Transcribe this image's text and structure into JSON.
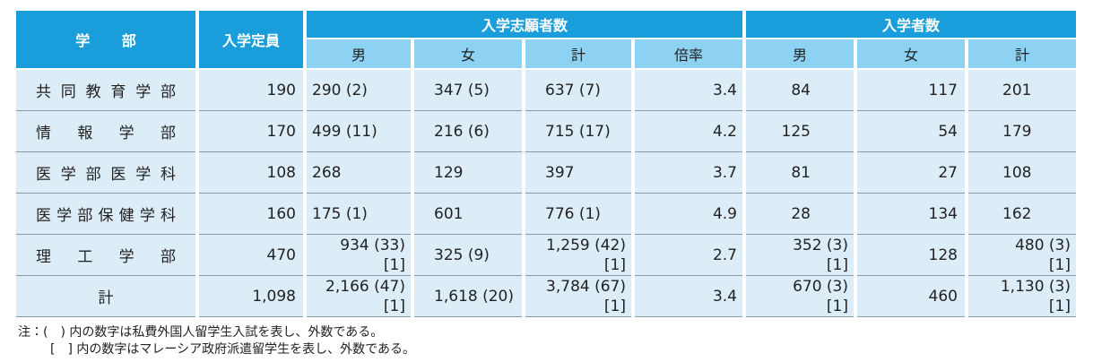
{
  "header": {
    "dept": "学 部",
    "capacity": "入学定員",
    "applicants": "入学志願者数",
    "entrants": "入学者数",
    "applicant_cols": [
      "男",
      "女",
      "計",
      "倍率"
    ],
    "entrant_cols": [
      "男",
      "女",
      "計"
    ]
  },
  "rows": [
    [
      "共同教育学部",
      "190",
      "290 (2)",
      "347 (5)",
      "637 (7)",
      "3.4",
      "84",
      "117",
      "201"
    ],
    [
      "情報学部",
      "170",
      "499 (11)",
      "216 (6)",
      "715 (17)",
      "4.2",
      "125",
      "54",
      "179"
    ],
    [
      "医学部医学科",
      "108",
      "268",
      "129",
      "397",
      "3.7",
      "81",
      "27",
      "108"
    ],
    [
      "医学部保健学科",
      "160",
      "175 (1)",
      "601",
      "776 (1)",
      "4.9",
      "28",
      "134",
      "162"
    ],
    [
      "理工学部",
      "470",
      {
        "text": "934 (33)",
        "note": "[1]"
      },
      "325 (9)",
      {
        "text": "1,259 (42)",
        "note": "[1]"
      },
      "2.7",
      {
        "text": "352 (3)",
        "note": "[1]"
      },
      "128",
      {
        "text": "480 (3)",
        "note": "[1]"
      }
    ],
    [
      "計",
      "1,098",
      {
        "text": "2,166 (47)",
        "note": "[1]"
      },
      "1,618 (20)",
      {
        "text": "3,784 (67)",
        "note": "[1]"
      },
      "3.4",
      {
        "text": "670 (3)",
        "note": "[1]"
      },
      "460",
      {
        "text": "1,130 (3)",
        "note": "[1]"
      }
    ]
  ],
  "notes": [
    "注：(　) 内の数字は私費外国人留学生入試を表し、外数である。",
    "[　] 内の数字はマレーシア政府派遣留学生を表し、外数である。"
  ]
}
